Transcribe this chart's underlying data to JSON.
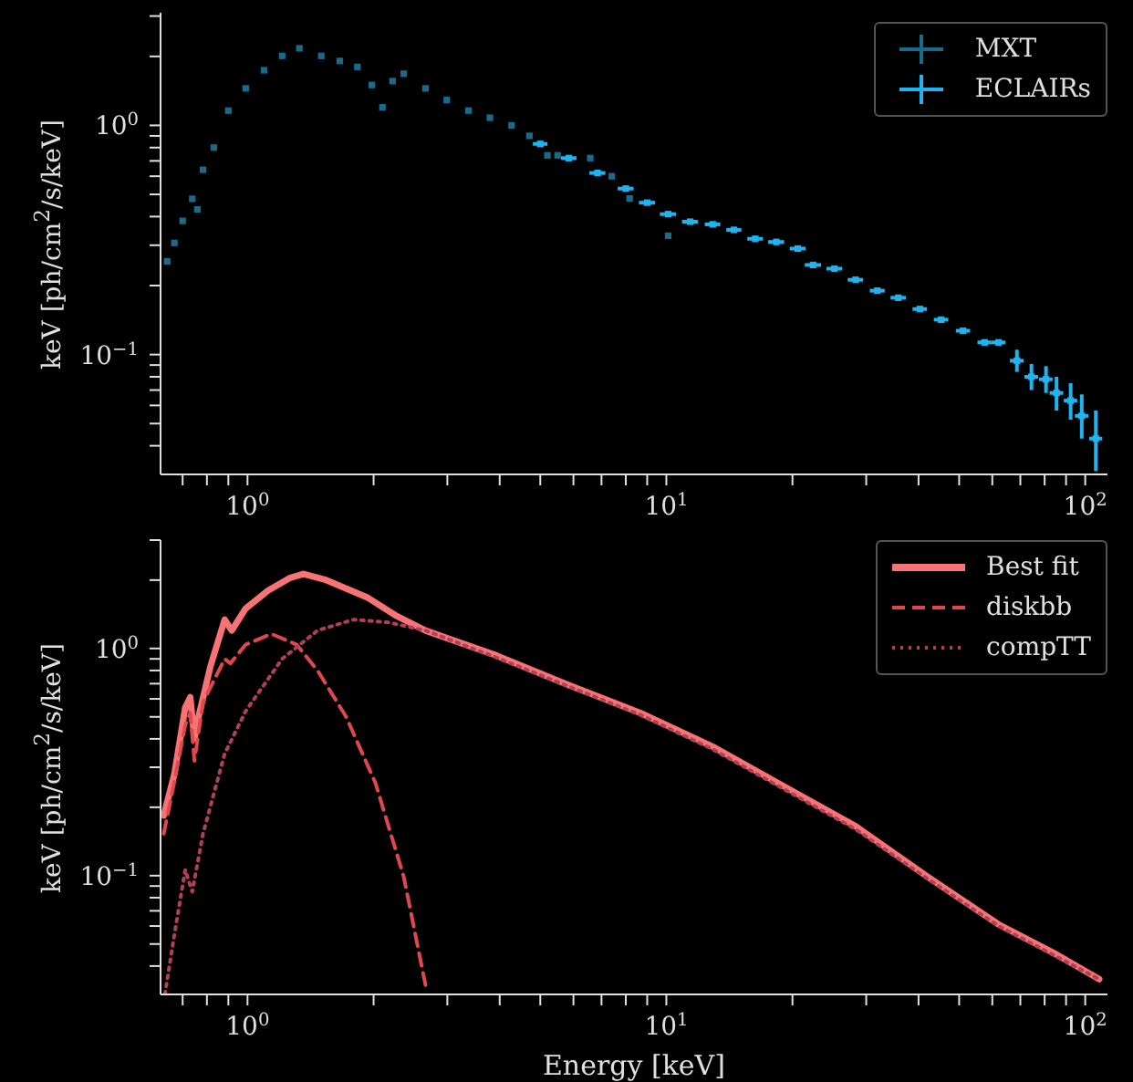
{
  "chart_data": [
    {
      "type": "scatter",
      "ylabel": "keV [ph/cm$^{2}$/s/keV]",
      "log": "xy",
      "grid": false,
      "legend": "top right",
      "xlim": [
        0.62,
        113
      ],
      "ylim": [
        0.03,
        3.1
      ],
      "xticks": [
        {
          "value": 0.7,
          "label": null
        },
        {
          "value": 0.8,
          "label": null
        },
        {
          "value": 0.9,
          "label": null
        },
        {
          "value": 1,
          "label": "10$^{0}$"
        },
        {
          "value": 2,
          "label": null
        },
        {
          "value": 3,
          "label": null
        },
        {
          "value": 4,
          "label": null
        },
        {
          "value": 5,
          "label": null
        },
        {
          "value": 6,
          "label": null
        },
        {
          "value": 7,
          "label": null
        },
        {
          "value": 8,
          "label": null
        },
        {
          "value": 9,
          "label": null
        },
        {
          "value": 10,
          "label": "10$^{1}$"
        },
        {
          "value": 20,
          "label": null
        },
        {
          "value": 30,
          "label": null
        },
        {
          "value": 40,
          "label": null
        },
        {
          "value": 50,
          "label": null
        },
        {
          "value": 60,
          "label": null
        },
        {
          "value": 70,
          "label": null
        },
        {
          "value": 80,
          "label": null
        },
        {
          "value": 90,
          "label": null
        },
        {
          "value": 100,
          "label": "10$^{2}$"
        }
      ],
      "yticks": [
        {
          "value": 0.04,
          "label": null
        },
        {
          "value": 0.05,
          "label": null
        },
        {
          "value": 0.06,
          "label": null
        },
        {
          "value": 0.07,
          "label": null
        },
        {
          "value": 0.08,
          "label": null
        },
        {
          "value": 0.09,
          "label": null
        },
        {
          "value": 0.1,
          "label": "10$^{−1}$"
        },
        {
          "value": 0.2,
          "label": null
        },
        {
          "value": 0.3,
          "label": null
        },
        {
          "value": 0.4,
          "label": null
        },
        {
          "value": 0.5,
          "label": null
        },
        {
          "value": 0.6,
          "label": null
        },
        {
          "value": 0.7,
          "label": null
        },
        {
          "value": 0.8,
          "label": null
        },
        {
          "value": 0.9,
          "label": null
        },
        {
          "value": 1,
          "label": "10$^{0}$"
        },
        {
          "value": 2,
          "label": null
        },
        {
          "value": 3,
          "label": null
        }
      ],
      "series": [
        {
          "name": "MXT",
          "color": "#1a6a8c",
          "marker": "square",
          "x": [
            0.643,
            0.669,
            0.7,
            0.738,
            0.759,
            0.783,
            0.831,
            0.9,
            0.99,
            1.095,
            1.21,
            1.33,
            1.5,
            1.66,
            1.83,
            1.98,
            2.1,
            2.22,
            2.36,
            2.66,
            2.99,
            3.37,
            3.79,
            4.27,
            4.71,
            5.2,
            5.5,
            6.58,
            7.41,
            8.17,
            10.1
          ],
          "values": [
            0.255,
            0.307,
            0.383,
            0.478,
            0.43,
            0.64,
            0.8,
            1.16,
            1.45,
            1.74,
            2.01,
            2.17,
            2.01,
            1.91,
            1.8,
            1.5,
            1.2,
            1.56,
            1.68,
            1.45,
            1.29,
            1.16,
            1.08,
            1.0,
            0.9,
            0.74,
            0.74,
            0.72,
            0.6,
            0.48,
            0.33
          ]
        },
        {
          "name": "ECLAIRs",
          "color": "#1fb4f0",
          "marker": "square",
          "x": [
            5.0,
            5.85,
            6.85,
            8.0,
            9.0,
            10.1,
            11.4,
            12.9,
            14.5,
            16.3,
            18.3,
            20.6,
            22.4,
            25.2,
            28.3,
            31.9,
            35.8,
            40.3,
            45.3,
            51.1,
            57.5,
            62.1,
            68.7,
            74.4,
            80.6,
            85.4,
            92.3,
            98.1,
            106
          ],
          "values": [
            0.83,
            0.72,
            0.62,
            0.53,
            0.46,
            0.41,
            0.38,
            0.37,
            0.35,
            0.32,
            0.31,
            0.29,
            0.246,
            0.237,
            0.212,
            0.19,
            0.177,
            0.158,
            0.142,
            0.127,
            0.113,
            0.113,
            0.094,
            0.08,
            0.078,
            0.068,
            0.063,
            0.054,
            0.043
          ],
          "xerrors": [
            0.2,
            0.25,
            0.3,
            0.35,
            0.4,
            0.45,
            0.5,
            0.55,
            0.6,
            0.7,
            0.8,
            0.9,
            1,
            1.1,
            1.2,
            1.3,
            1.5,
            1.6,
            1.8,
            2,
            2.2,
            2.4,
            2.6,
            2.8,
            3,
            3.2,
            3.4,
            3.6,
            3.8
          ],
          "errors": [
            null,
            null,
            null,
            null,
            null,
            null,
            null,
            null,
            null,
            null,
            null,
            null,
            null,
            null,
            null,
            null,
            null,
            null,
            null,
            null,
            null,
            null,
            [
              0.084,
              0.105
            ],
            [
              0.07,
              0.091
            ],
            [
              0.068,
              0.089
            ],
            [
              0.057,
              0.08
            ],
            [
              0.052,
              0.075
            ],
            [
              0.043,
              0.067
            ],
            [
              0.031,
              0.057
            ]
          ]
        }
      ]
    },
    {
      "type": "line",
      "xlabel": "Energy [keV]",
      "ylabel": "keV [ph/cm$^{2}$/s/keV]",
      "log": "xy",
      "grid": false,
      "legend": "top right",
      "xlim": [
        0.62,
        113
      ],
      "ylim": [
        0.03,
        3.0
      ],
      "xticks": [
        {
          "value": 0.7,
          "label": null
        },
        {
          "value": 0.8,
          "label": null
        },
        {
          "value": 0.9,
          "label": null
        },
        {
          "value": 1,
          "label": "10$^{0}$"
        },
        {
          "value": 2,
          "label": null
        },
        {
          "value": 3,
          "label": null
        },
        {
          "value": 4,
          "label": null
        },
        {
          "value": 5,
          "label": null
        },
        {
          "value": 6,
          "label": null
        },
        {
          "value": 7,
          "label": null
        },
        {
          "value": 8,
          "label": null
        },
        {
          "value": 9,
          "label": null
        },
        {
          "value": 10,
          "label": "10$^{1}$"
        },
        {
          "value": 20,
          "label": null
        },
        {
          "value": 30,
          "label": null
        },
        {
          "value": 40,
          "label": null
        },
        {
          "value": 50,
          "label": null
        },
        {
          "value": 60,
          "label": null
        },
        {
          "value": 70,
          "label": null
        },
        {
          "value": 80,
          "label": null
        },
        {
          "value": 90,
          "label": null
        },
        {
          "value": 100,
          "label": "10$^{2}$"
        }
      ],
      "yticks": [
        {
          "value": 0.04,
          "label": null
        },
        {
          "value": 0.05,
          "label": null
        },
        {
          "value": 0.06,
          "label": null
        },
        {
          "value": 0.07,
          "label": null
        },
        {
          "value": 0.08,
          "label": null
        },
        {
          "value": 0.09,
          "label": null
        },
        {
          "value": 0.1,
          "label": "10$^{−1}$"
        },
        {
          "value": 0.2,
          "label": null
        },
        {
          "value": 0.3,
          "label": null
        },
        {
          "value": 0.4,
          "label": null
        },
        {
          "value": 0.5,
          "label": null
        },
        {
          "value": 0.6,
          "label": null
        },
        {
          "value": 0.7,
          "label": null
        },
        {
          "value": 0.8,
          "label": null
        },
        {
          "value": 0.9,
          "label": null
        },
        {
          "value": 1,
          "label": "10$^{0}$"
        },
        {
          "value": 2,
          "label": null
        },
        {
          "value": 3,
          "label": null
        }
      ],
      "series": [
        {
          "name": "Best fit",
          "color": "#f87474",
          "line_style": "solid",
          "x": [
            0.631,
            0.669,
            0.71,
            0.73,
            0.747,
            0.76,
            0.815,
            0.882,
            0.917,
            0.99,
            1.12,
            1.26,
            1.36,
            1.53,
            1.94,
            2.27,
            2.66,
            3.94,
            5.85,
            8.67,
            12.9,
            19.1,
            28.3,
            42.0,
            62.1,
            85.4,
            108
          ],
          "values": [
            0.184,
            0.28,
            0.55,
            0.61,
            0.4,
            0.48,
            0.83,
            1.34,
            1.2,
            1.5,
            1.8,
            2.04,
            2.13,
            2.01,
            1.67,
            1.39,
            1.2,
            0.93,
            0.69,
            0.52,
            0.37,
            0.247,
            0.165,
            0.099,
            0.061,
            0.045,
            0.035
          ]
        },
        {
          "name": "diskbb",
          "color": "#e0474f",
          "line_style": "dashed",
          "x": [
            0.631,
            0.669,
            0.71,
            0.73,
            0.747,
            0.783,
            0.882,
            0.91,
            0.99,
            1.14,
            1.31,
            1.47,
            1.72,
            2.02,
            2.36,
            2.66
          ],
          "values": [
            0.153,
            0.26,
            0.46,
            0.52,
            0.32,
            0.58,
            0.9,
            0.86,
            1.04,
            1.16,
            1.04,
            0.8,
            0.5,
            0.256,
            0.099,
            0.033
          ]
        },
        {
          "name": "compTT",
          "color": "#b0405a",
          "line_style": "dotted",
          "x": [
            0.635,
            0.669,
            0.71,
            0.738,
            0.783,
            0.882,
            0.99,
            1.21,
            1.47,
            1.79,
            2.18,
            2.66,
            3.94,
            5.85,
            8.67,
            12.9,
            19.1,
            28.3,
            42.0,
            62.1,
            85.4,
            108
          ],
          "values": [
            0.03,
            0.055,
            0.106,
            0.085,
            0.153,
            0.344,
            0.53,
            0.9,
            1.2,
            1.34,
            1.3,
            1.2,
            0.91,
            0.68,
            0.51,
            0.36,
            0.24,
            0.16,
            0.097,
            0.06,
            0.044,
            0.035
          ]
        }
      ]
    }
  ]
}
